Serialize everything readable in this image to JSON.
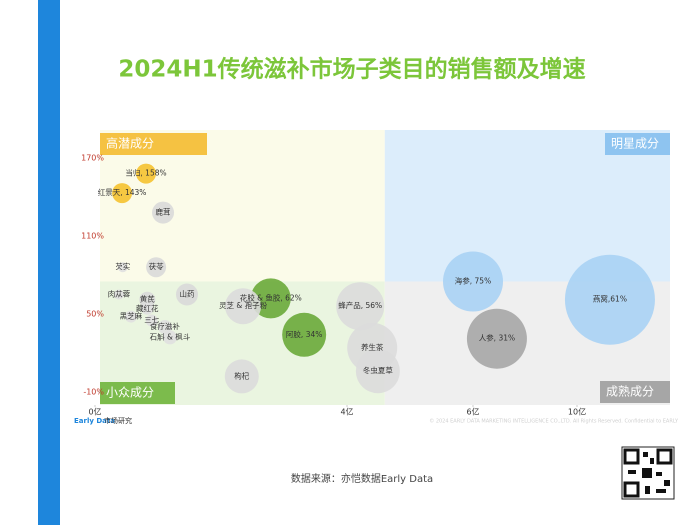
{
  "chart_data": {
    "type": "bubble",
    "title": "2024H1传统滋补市场子类目的销售额及增速",
    "labels": [
      "当归, 158%",
      "红景天, 143%",
      "鹿茸",
      "茯苓",
      "芡实",
      "山药",
      "肉苁蓉",
      "黄芪",
      "藏红花",
      "黑芝麻",
      "三七",
      "食疗滋补",
      "石斛 & 枫斗",
      "灵芝 & 孢子粉",
      "花胶 & 鱼胶, 62%",
      "阿胶, 34%",
      "枸杞",
      "蜂产品, 56%",
      "养生茶",
      "冬虫夏草",
      "海参, 75%",
      "人参, 31%",
      "燕窝,61%"
    ],
    "x": [
      0.81,
      0.43,
      1.08,
      0.97,
      0.44,
      1.46,
      0.38,
      0.83,
      0.83,
      0.57,
      0.9,
      1.11,
      1.19,
      2.35,
      2.79,
      3.32,
      2.33,
      4.21,
      4.4,
      4.49,
      6.0,
      6.92,
      11.24
    ],
    "values": [
      158,
      143,
      128,
      86,
      86,
      65,
      65,
      61,
      54,
      48,
      45,
      40,
      32,
      56,
      62,
      34,
      2,
      56,
      24,
      6,
      75,
      31,
      61
    ],
    "sizes": [
      10,
      10,
      11,
      10,
      5,
      11,
      5,
      8,
      6,
      6,
      6,
      7,
      7,
      18,
      20,
      22,
      17,
      24,
      25,
      22,
      30,
      30,
      45
    ],
    "colors": [
      "#f5c230",
      "#f5c230",
      "#d9d9d9",
      "#d9d9d9",
      "#e0e0e0",
      "#d9d9d9",
      "#e0e0e0",
      "#d9d9d9",
      "#e0e0e0",
      "#e0e0e0",
      "#e0e0e0",
      "#e0e0e0",
      "#e0e0e0",
      "#dcdcdc",
      "#6aaa3a",
      "#6aaa3a",
      "#dcdcdc",
      "#dcdcdc",
      "#dcdcdc",
      "#dcdcdc",
      "#a8d2f4",
      "#a6a6a6",
      "#a8d2f4"
    ],
    "xlim": [
      0,
      13.5
    ],
    "xticks": [
      {
        "value": 0,
        "label": "0亿"
      },
      {
        "value": 4,
        "label": "4亿"
      },
      {
        "value": 6,
        "label": "6亿"
      },
      {
        "value": 10,
        "label": "10亿"
      }
    ],
    "ylim": [
      -19,
      191
    ],
    "yticks": [
      {
        "value": 170,
        "label": "170%"
      },
      {
        "value": 110,
        "label": "110%"
      },
      {
        "value": 50,
        "label": "50%"
      },
      {
        "value": -10,
        "label": "-10%"
      }
    ],
    "quadrant_split": {
      "x": 4.6,
      "y": 75
    },
    "quadrants": {
      "top_left": "高潜成分",
      "top_right": "明星成分",
      "bottom_left": "小众成分",
      "bottom_right": "成熟成分"
    }
  },
  "footer": {
    "logo": "Early Data",
    "logo_sub": "市场研究",
    "copyright": "© 2024 EARLY DATA MARKETING INTELLIGENCE CO.,LTD. All Rights Reserved. Confidential to EARLY",
    "source": "数据来源：亦恺数据Early Data"
  }
}
